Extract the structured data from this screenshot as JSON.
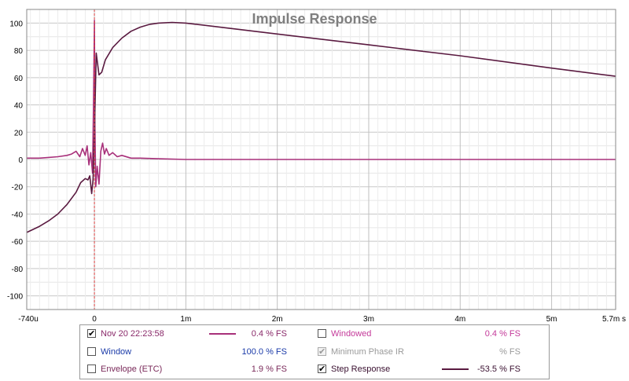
{
  "chart_data": {
    "type": "line",
    "title": "Impulse Response",
    "x_ticks": [
      "-740u",
      "0",
      "1m",
      "2m",
      "3m",
      "4m",
      "5m",
      "5.7m s"
    ],
    "x_tick_values": [
      -0.74,
      0,
      1,
      2,
      3,
      4,
      5,
      5.7
    ],
    "xlim": [
      -0.74,
      5.7
    ],
    "ylim": [
      -110,
      110
    ],
    "y_ticks": [
      100,
      80,
      60,
      40,
      20,
      0,
      -20,
      -40,
      -60,
      -80,
      -100
    ],
    "grid": true,
    "marker_x": 0,
    "series": [
      {
        "name": "Nov 20 22:23:58",
        "color": "#a8307a",
        "x": [
          -0.74,
          -0.6,
          -0.5,
          -0.4,
          -0.3,
          -0.25,
          -0.2,
          -0.16,
          -0.13,
          -0.1,
          -0.08,
          -0.06,
          -0.04,
          -0.02,
          -0.01,
          0,
          0.005,
          0.015,
          0.03,
          0.05,
          0.07,
          0.09,
          0.11,
          0.13,
          0.16,
          0.2,
          0.25,
          0.3,
          0.4,
          0.5,
          0.7,
          1,
          2,
          3,
          4,
          5,
          5.7
        ],
        "y": [
          1,
          1,
          1.5,
          2,
          3,
          4,
          6,
          2,
          8,
          3,
          10,
          -4,
          5,
          -10,
          40,
          102,
          30,
          -20,
          -5,
          -18,
          6,
          12,
          4,
          8,
          3,
          5,
          2,
          3,
          1,
          1,
          0.5,
          0,
          0,
          0,
          0,
          0,
          0
        ]
      },
      {
        "name": "Step Response",
        "color": "#5a1a40",
        "x": [
          -0.74,
          -0.6,
          -0.5,
          -0.4,
          -0.3,
          -0.2,
          -0.15,
          -0.1,
          -0.07,
          -0.05,
          -0.03,
          -0.015,
          0,
          0.02,
          0.05,
          0.08,
          0.12,
          0.2,
          0.3,
          0.4,
          0.5,
          0.6,
          0.7,
          0.85,
          1,
          1.5,
          2,
          3,
          4,
          5,
          5.7
        ],
        "y": [
          -53.5,
          -49,
          -45,
          -40,
          -33,
          -24,
          -17,
          -14,
          -15,
          -12,
          -25,
          -15,
          20,
          78,
          62,
          64,
          73,
          82,
          89,
          94,
          97,
          99,
          100,
          100.5,
          100,
          96,
          92,
          84,
          76,
          67,
          61
        ]
      }
    ]
  },
  "legend": {
    "items": [
      {
        "label": "Nov 20 22:23:58",
        "value": "0.4 % FS",
        "checked": "✔",
        "label_color": "#8a2a6a",
        "value_color": "#8a2a6a",
        "swatch": "#a8307a"
      },
      {
        "label": "Window",
        "value": "100.0 % FS",
        "checked": "",
        "label_color": "#1a3aa8",
        "value_color": "#1a3aa8",
        "swatch": ""
      },
      {
        "label": "Envelope (ETC)",
        "value": "1.9 % FS",
        "checked": "",
        "label_color": "#7a2a5a",
        "value_color": "#7a2a5a",
        "swatch": ""
      },
      {
        "label": "Windowed",
        "value": "0.4 % FS",
        "checked": "",
        "label_color": "#c43a9a",
        "value_color": "#c43a9a",
        "swatch": ""
      },
      {
        "label": "Minimum Phase IR",
        "value": "% FS",
        "checked": "✔",
        "label_color": "#9a9a9a",
        "value_color": "#9a9a9a",
        "swatch": ""
      },
      {
        "label": "Step Response",
        "value": "-53.5 % FS",
        "checked": "✔",
        "label_color": "#3a1030",
        "value_color": "#3a1030",
        "swatch": "#5a1a40"
      }
    ]
  }
}
